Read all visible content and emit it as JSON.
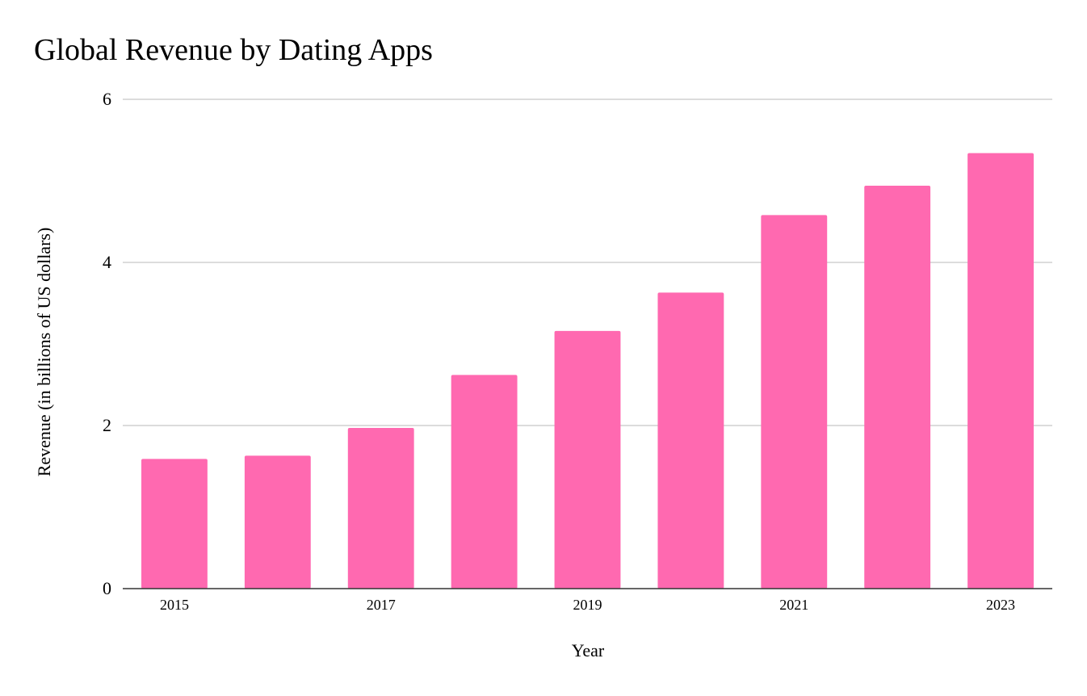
{
  "chart_data": {
    "type": "bar",
    "title": "Global Revenue by Dating Apps",
    "xlabel": "Year",
    "ylabel": "Revenue (in billions of US dollars)",
    "categories": [
      "2015",
      "2016",
      "2017",
      "2018",
      "2019",
      "2020",
      "2021",
      "2022",
      "2023"
    ],
    "x_tick_labels": [
      "2015",
      "2017",
      "2019",
      "2021",
      "2023"
    ],
    "series": [
      {
        "values": [
          1.59,
          1.63,
          1.97,
          2.62,
          3.16,
          3.63,
          4.58,
          4.94,
          5.34
        ]
      }
    ],
    "ylim": [
      0,
      6
    ],
    "y_ticks": [
      0,
      2,
      4,
      6
    ],
    "grid": true,
    "legend": "none",
    "colors": {
      "bar": "#ff69b0",
      "grid": "#c6c6c6",
      "axis": "#333333"
    }
  }
}
